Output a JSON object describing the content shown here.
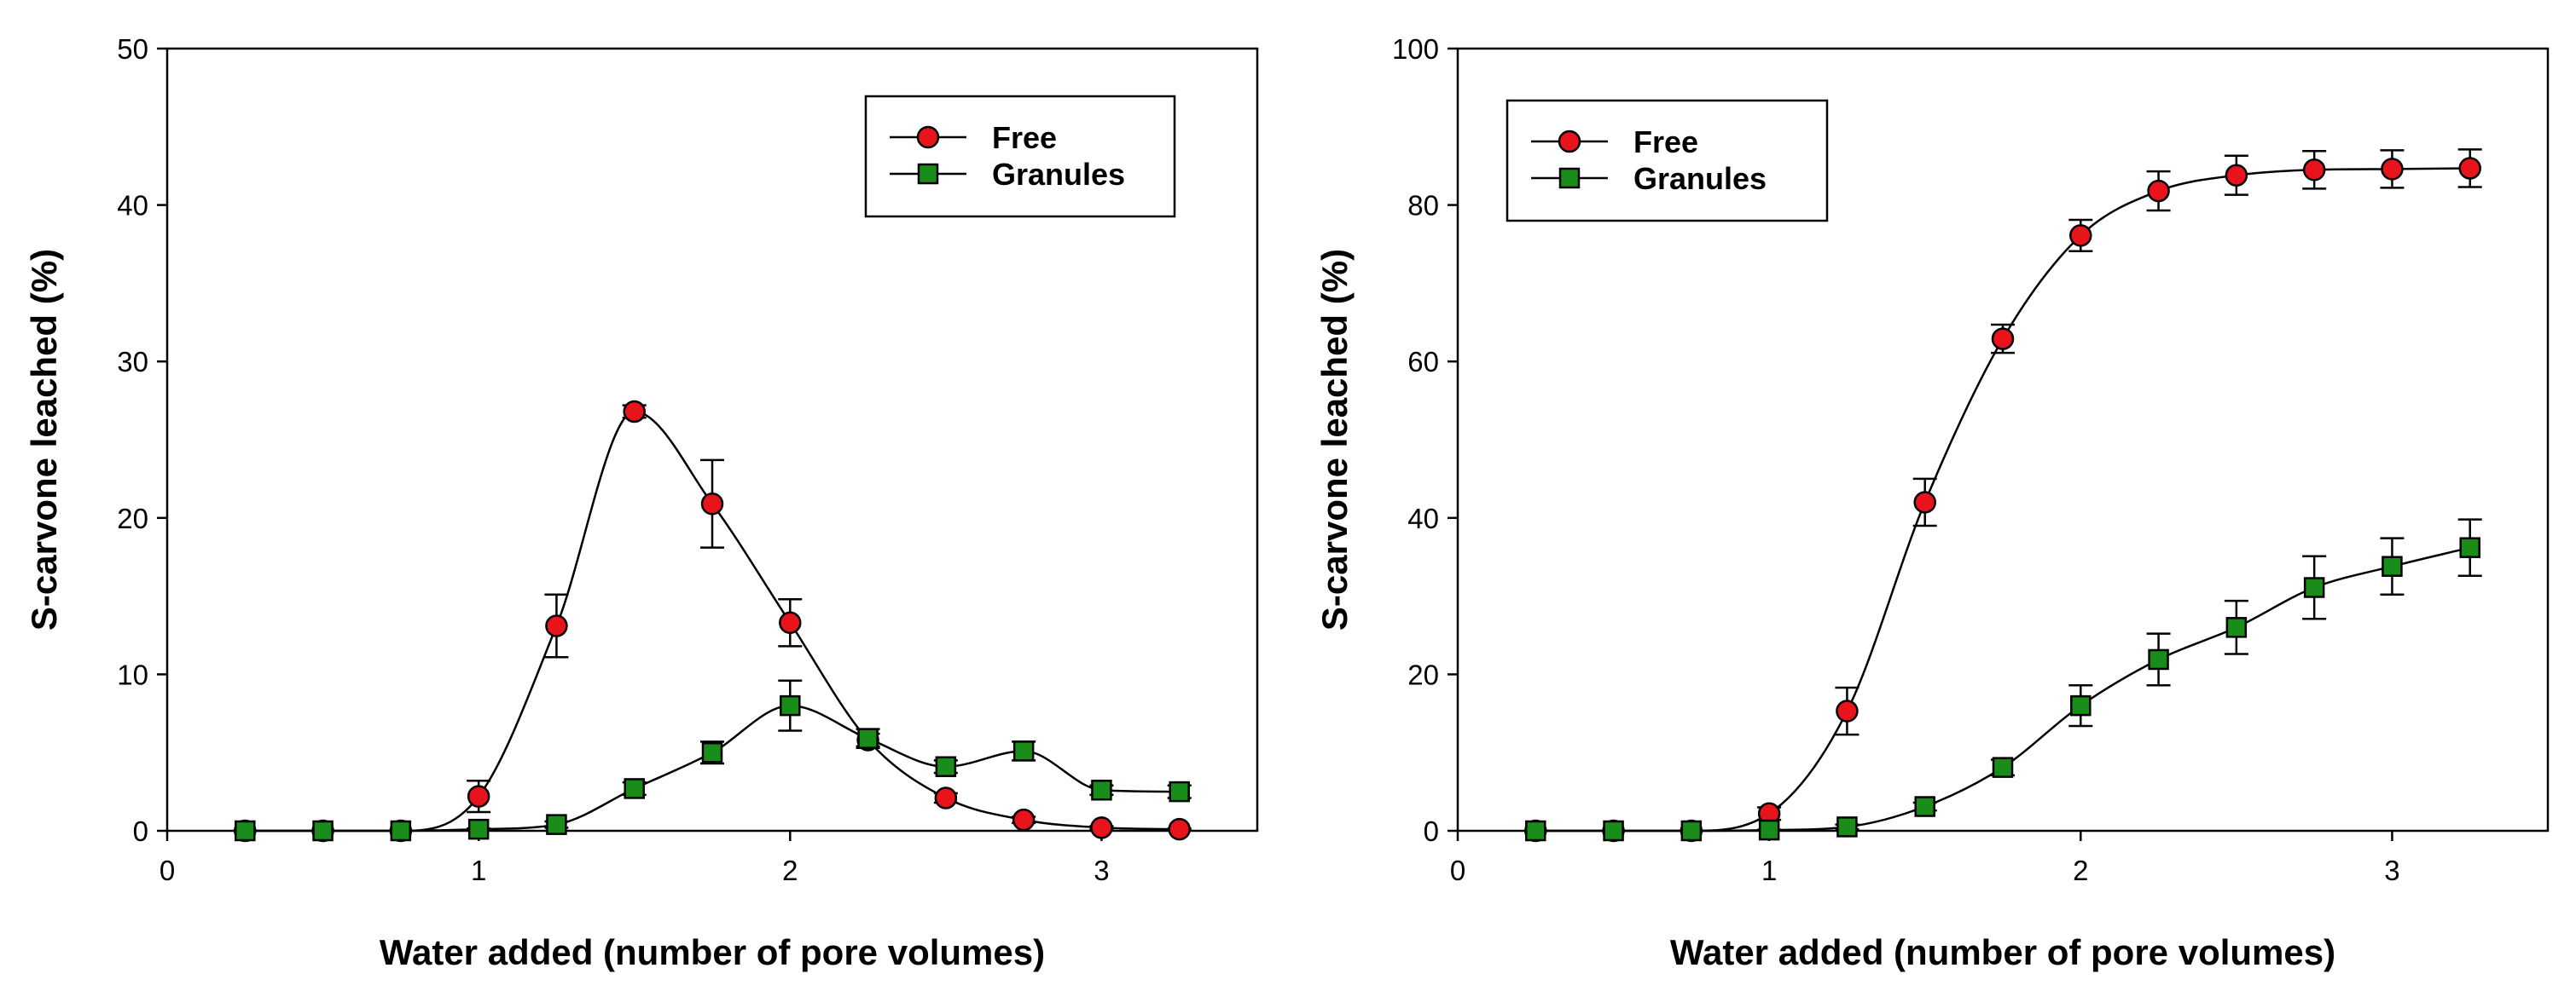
{
  "chart_data": [
    {
      "type": "line",
      "title": "",
      "xlabel": "Water added (number of pore volumes)",
      "ylabel": "S-carvone leached (%)",
      "xlim": [
        0,
        3.5
      ],
      "ylim": [
        0,
        50
      ],
      "xticks": [
        "0",
        "1",
        "2",
        "3"
      ],
      "yticks": [
        "0",
        "10",
        "20",
        "30",
        "40",
        "50"
      ],
      "legend_position": "top-right",
      "series": [
        {
          "name": "Free",
          "marker": "circle",
          "color": "#e8141c",
          "x": [
            0.25,
            0.5,
            0.75,
            1.0,
            1.25,
            1.5,
            1.75,
            2.0,
            2.25,
            2.5,
            2.75,
            3.0,
            3.25
          ],
          "y": [
            0,
            0,
            0,
            2.2,
            13.1,
            26.8,
            20.9,
            13.3,
            5.8,
            2.1,
            0.7,
            0.2,
            0.1
          ],
          "err": [
            0,
            0,
            0,
            1.0,
            2.0,
            0.4,
            2.8,
            1.5,
            0.4,
            0.3,
            0.2,
            0.1,
            0.05
          ]
        },
        {
          "name": "Granules",
          "marker": "square",
          "color": "#1a8c1a",
          "x": [
            0.25,
            0.5,
            0.75,
            1.0,
            1.25,
            1.5,
            1.75,
            2.0,
            2.25,
            2.5,
            2.75,
            3.0,
            3.25
          ],
          "y": [
            0,
            0,
            0,
            0.1,
            0.4,
            2.7,
            5.0,
            8.0,
            5.9,
            4.1,
            5.1,
            2.6,
            2.5
          ],
          "err": [
            0,
            0,
            0,
            0.05,
            0.2,
            0.4,
            0.7,
            1.6,
            0.6,
            0.4,
            0.6,
            0.3,
            0.4
          ]
        }
      ]
    },
    {
      "type": "line",
      "title": "",
      "xlabel": "Water added (number of pore volumes)",
      "ylabel": "S-carvone leached (%)",
      "xlim": [
        0,
        3.5
      ],
      "ylim": [
        0,
        100
      ],
      "xticks": [
        "0",
        "1",
        "2",
        "3"
      ],
      "yticks": [
        "0",
        "20",
        "40",
        "60",
        "80",
        "100"
      ],
      "legend_position": "top-left",
      "series": [
        {
          "name": "Free",
          "marker": "circle",
          "color": "#e8141c",
          "x": [
            0.25,
            0.5,
            0.75,
            1.0,
            1.25,
            1.5,
            1.75,
            2.0,
            2.25,
            2.5,
            2.75,
            3.0,
            3.25
          ],
          "y": [
            0,
            0,
            0,
            2.2,
            15.3,
            42.0,
            62.9,
            76.1,
            81.8,
            83.8,
            84.5,
            84.6,
            84.7
          ],
          "err": [
            0,
            0,
            0,
            0.8,
            3.0,
            3.0,
            1.8,
            2.0,
            2.5,
            2.5,
            2.4,
            2.4,
            2.4
          ]
        },
        {
          "name": "Granules",
          "marker": "square",
          "color": "#1a8c1a",
          "x": [
            0.25,
            0.5,
            0.75,
            1.0,
            1.25,
            1.5,
            1.75,
            2.0,
            2.25,
            2.5,
            2.75,
            3.0,
            3.25
          ],
          "y": [
            0,
            0,
            0,
            0.1,
            0.5,
            3.1,
            8.1,
            16.0,
            21.9,
            26.0,
            31.1,
            33.8,
            36.2
          ],
          "err": [
            0,
            0,
            0,
            0.05,
            0.3,
            0.5,
            1.0,
            2.6,
            3.3,
            3.4,
            4.0,
            3.6,
            3.6
          ]
        }
      ]
    }
  ]
}
